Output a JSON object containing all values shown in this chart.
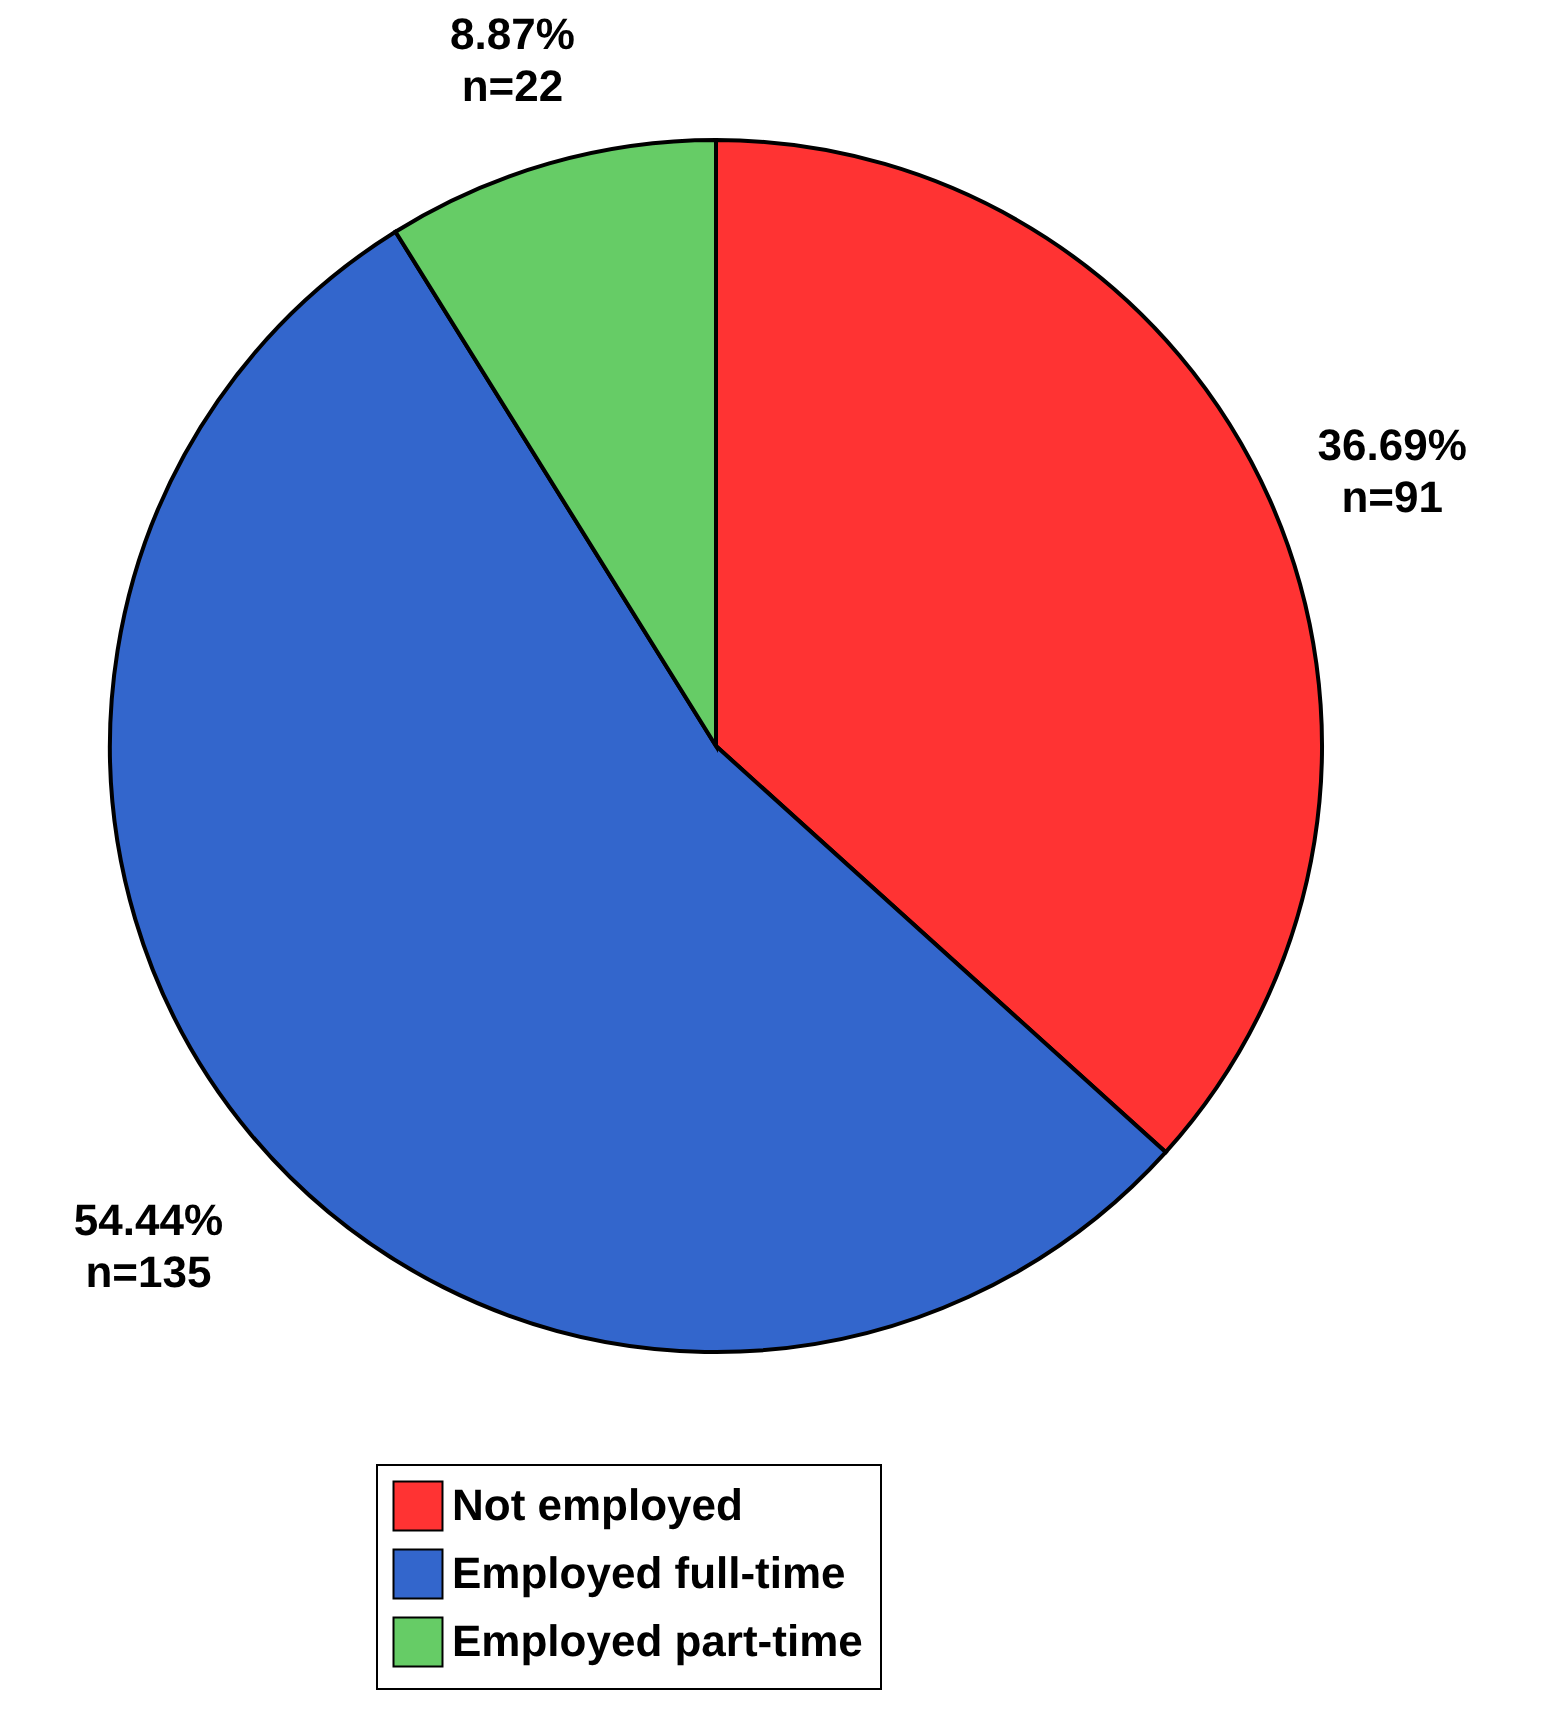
{
  "chart_data": {
    "type": "pie",
    "categories": [
      "Not employed",
      "Employed full-time",
      "Employed part-time"
    ],
    "values": [
      36.69,
      54.44,
      8.87
    ],
    "colors": [
      "#ff3333",
      "#3366cc",
      "#66cc66"
    ],
    "value_labels": [
      "36.69%\nn=91",
      "54.44%\nn=135",
      "8.87%\nn=22"
    ],
    "legend": "bottom"
  }
}
